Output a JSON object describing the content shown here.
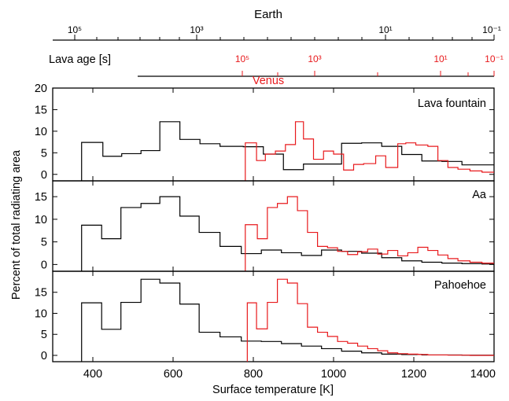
{
  "colors": {
    "earth": "#000000",
    "venus": "#e8191c"
  },
  "top_axes": {
    "earth": {
      "title": "Earth",
      "ticks": [
        "10⁵",
        "10³",
        "10¹",
        "10⁻¹"
      ]
    },
    "venus": {
      "title": "Venus",
      "row_label": "Lava age [s]",
      "ticks": [
        "10⁵",
        "10³",
        "10¹",
        "10⁻¹"
      ]
    }
  },
  "chart_data": {
    "type": "histogram-step",
    "xlabel": "Surface temperature [K]",
    "ylabel": "Percent of total radiating area",
    "xlim": [
      300,
      1400
    ],
    "xticks": [
      400,
      600,
      800,
      1000,
      1200,
      1400
    ],
    "panels": [
      {
        "title": "Lava fountain",
        "ylim": [
          -1.5,
          20
        ],
        "yticks": [
          0,
          5,
          10,
          15,
          20
        ],
        "series": [
          {
            "color": "earth",
            "x": [
              372,
              425,
              472,
              520,
              567,
              617,
              667,
              717,
              775,
              825,
              875,
              925,
              970,
              1020,
              1070,
              1120,
              1170,
              1220,
              1270,
              1320,
              1370
            ],
            "y": [
              7.4,
              4.2,
              4.8,
              5.5,
              12.2,
              8.1,
              7.1,
              6.5,
              6.4,
              4.7,
              1.1,
              2.4,
              2.4,
              7.2,
              7.3,
              6.5,
              4.6,
              3.1,
              3.0,
              2.2,
              2.2
            ]
          },
          {
            "color": "venus",
            "x": [
              780,
              808,
              830,
              855,
              880,
              905,
              925,
              950,
              975,
              1000,
              1025,
              1050,
              1075,
              1105,
              1130,
              1160,
              1180,
              1205,
              1235,
              1260,
              1285,
              1310,
              1340,
              1370
            ],
            "y": [
              7.3,
              3.2,
              4.7,
              5.4,
              6.9,
              12.2,
              8.2,
              3.5,
              5.4,
              4.7,
              1.0,
              2.3,
              2.5,
              4.3,
              1.6,
              7.1,
              7.3,
              6.8,
              6.5,
              3.2,
              1.6,
              1.2,
              0.8,
              0.5
            ]
          }
        ]
      },
      {
        "title": "Aa",
        "ylim": [
          -1.5,
          18.5
        ],
        "yticks": [
          0,
          5,
          10,
          15
        ],
        "series": [
          {
            "color": "earth",
            "x": [
              372,
              422,
              470,
              520,
              567,
              617,
              665,
              717,
              770,
              820,
              870,
              920,
              970,
              1020,
              1070,
              1120,
              1170,
              1220,
              1270,
              1320,
              1370
            ],
            "y": [
              8.7,
              5.7,
              12.6,
              13.5,
              15.0,
              10.7,
              7.1,
              4.0,
              2.4,
              3.2,
              2.6,
              2.0,
              3.2,
              2.9,
              2.5,
              1.5,
              0.8,
              0.5,
              0.3,
              0.2,
              0.1
            ]
          },
          {
            "color": "venus",
            "x": [
              780,
              810,
              835,
              860,
              885,
              910,
              935,
              960,
              985,
              1010,
              1035,
              1060,
              1085,
              1110,
              1135,
              1160,
              1185,
              1210,
              1235,
              1260,
              1285,
              1310,
              1340,
              1370
            ],
            "y": [
              8.8,
              5.7,
              12.6,
              13.5,
              15.0,
              11.9,
              7.1,
              4.0,
              3.7,
              2.9,
              2.2,
              2.8,
              3.4,
              2.3,
              3.1,
              1.9,
              2.6,
              3.8,
              3.1,
              2.1,
              1.3,
              0.8,
              0.5,
              0.3
            ]
          }
        ]
      },
      {
        "title": "Pahoehoe",
        "ylim": [
          -1.5,
          20
        ],
        "yticks": [
          0,
          5,
          10,
          15
        ],
        "series": [
          {
            "color": "earth",
            "x": [
              372,
              422,
              470,
              520,
              567,
              617,
              665,
              717,
              770,
              820,
              870,
              920,
              970,
              1020,
              1070,
              1120,
              1170,
              1220,
              1270,
              1320,
              1370
            ],
            "y": [
              12.5,
              6.2,
              12.6,
              18.1,
              17.2,
              12.2,
              5.5,
              4.4,
              3.4,
              3.3,
              2.8,
              2.2,
              1.6,
              1.0,
              0.6,
              0.3,
              0.2,
              0.1,
              0.1,
              0.05,
              0.05
            ]
          },
          {
            "color": "venus",
            "x": [
              785,
              808,
              835,
              860,
              885,
              910,
              935,
              960,
              985,
              1010,
              1035,
              1060,
              1085,
              1110,
              1135,
              1160,
              1185,
              1210,
              1235,
              1260,
              1285,
              1310,
              1340,
              1370
            ],
            "y": [
              12.5,
              6.3,
              12.6,
              18.1,
              17.2,
              12.3,
              6.7,
              5.5,
              4.5,
              3.3,
              2.9,
              2.2,
              1.6,
              1.1,
              0.6,
              0.4,
              0.3,
              0.2,
              0.1,
              0.1,
              0.05,
              0.05,
              0.0,
              0.0
            ]
          }
        ]
      }
    ]
  }
}
